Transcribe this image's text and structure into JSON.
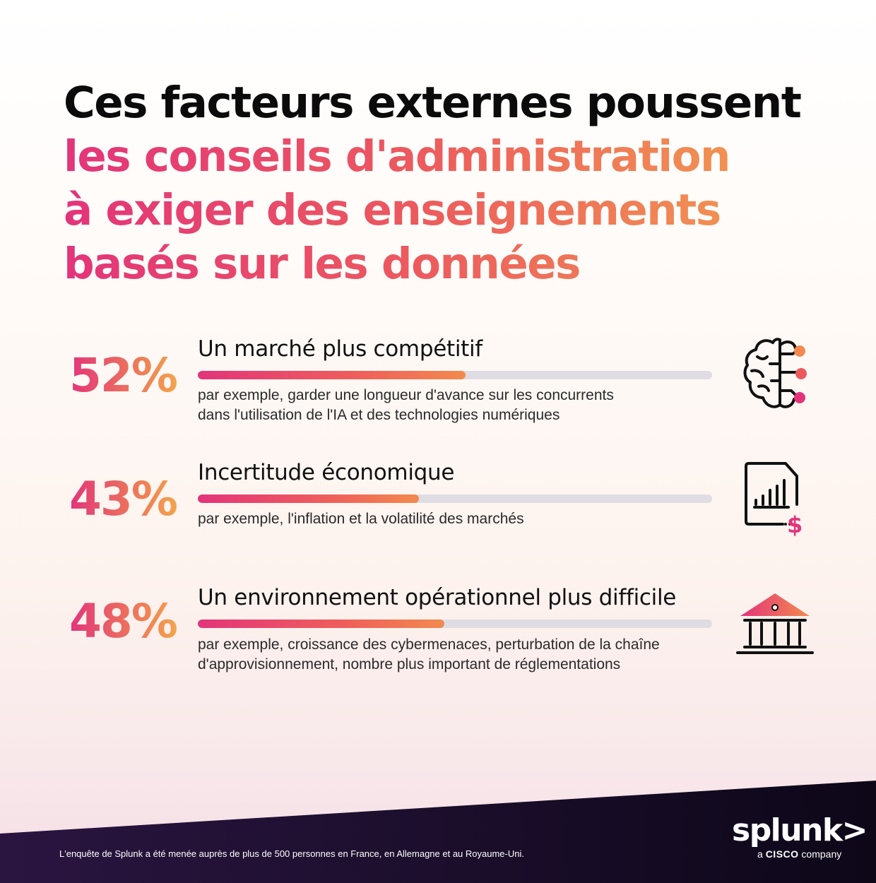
{
  "title": {
    "line1": "Ces facteurs externes poussent",
    "line2": "les conseils d'administration",
    "line3": "à exiger des enseignements",
    "line4": "basés sur les données"
  },
  "chart_data": {
    "type": "bar",
    "unit": "%",
    "categories": [
      "Un marché plus compétitif",
      "Incertitude économique",
      "Un environnement opérationnel plus difficile"
    ],
    "values": [
      52,
      43,
      48
    ],
    "value_labels": [
      "52%",
      "43%",
      "48%"
    ],
    "ylim": [
      0,
      100
    ]
  },
  "items": [
    {
      "percent": "52%",
      "title": "Un marché plus compétitif",
      "desc_line1": "par exemple, garder une longueur d'avance sur les concurrents",
      "desc_line2": "dans l'utilisation de l'IA et des technologies numériques",
      "icon": "brain-network-icon"
    },
    {
      "percent": "43%",
      "title": "Incertitude économique",
      "desc_line1": "par exemple, l'inflation et la volatilité des marchés",
      "icon": "financial-report-icon"
    },
    {
      "percent": "48%",
      "title": "Un environnement opérationnel plus difficile",
      "desc_line1": "par exemple, croissance des cybermenaces, perturbation de la chaîne",
      "desc_line2": "d'approvisionnement, nombre plus important de réglementations",
      "icon": "institution-building-icon"
    }
  ],
  "footer": {
    "note": "L'enquête de Splunk a été menée auprès de plus de 500 personnes en France, en Allemagne et au Royaume-Uni.",
    "logo": "splunk>",
    "logo_sub_prefix": "a",
    "logo_sub_brand": "CISCO",
    "logo_sub_suffix": "company"
  },
  "colors": {
    "accent_pink": "#e3347a",
    "accent_orange": "#f28a4e",
    "accent_yellow": "#f3a64d",
    "track_gray": "#dfdde3",
    "footer_dark": "#120a22"
  }
}
